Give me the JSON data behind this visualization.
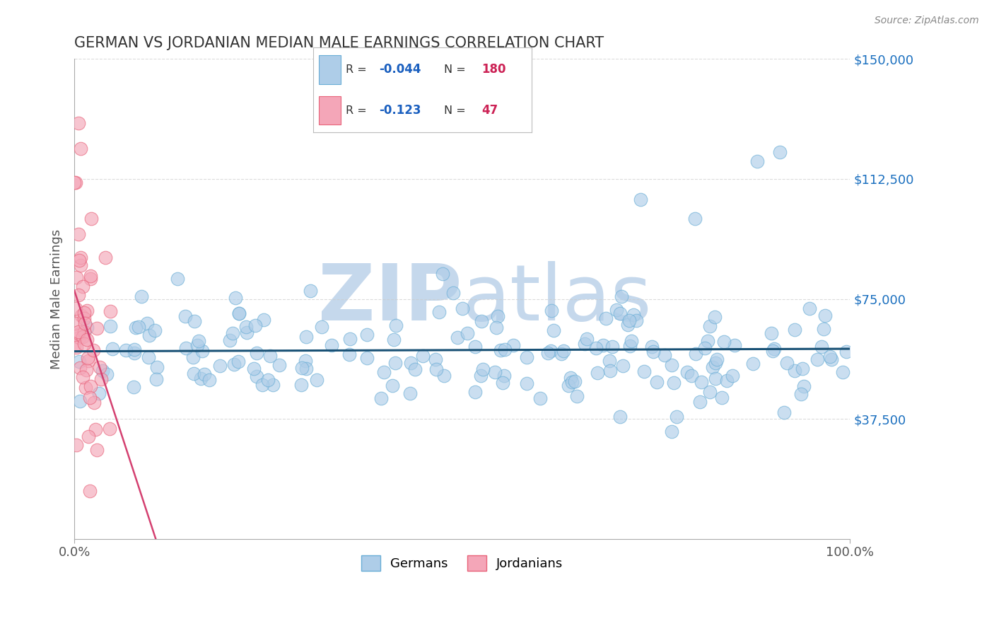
{
  "title": "GERMAN VS JORDANIAN MEDIAN MALE EARNINGS CORRELATION CHART",
  "source_text": "Source: ZipAtlas.com",
  "ylabel": "Median Male Earnings",
  "xlim": [
    0,
    1
  ],
  "ylim": [
    0,
    150000
  ],
  "yticks": [
    0,
    37500,
    75000,
    112500,
    150000
  ],
  "ytick_labels": [
    "",
    "$37,500",
    "$75,000",
    "$112,500",
    "$150,000"
  ],
  "xtick_labels": [
    "0.0%",
    "100.0%"
  ],
  "german_R": -0.044,
  "german_N": 180,
  "jordanian_R": -0.123,
  "jordanian_N": 47,
  "german_color": "#aecde8",
  "german_edge_color": "#6aaed6",
  "jordanian_color": "#f4a6b8",
  "jordanian_edge_color": "#e8637a",
  "german_line_color": "#1a5276",
  "jordanian_line_color": "#d44070",
  "grid_color": "#cccccc",
  "title_color": "#333333",
  "ylabel_color": "#555555",
  "ytick_color": "#1a6fbf",
  "source_color": "#888888",
  "watermark_zip_color": "#c5d8ec",
  "watermark_atlas_color": "#c5d8ec",
  "background_color": "#ffffff",
  "legend_R_color": "#1a5fbf",
  "legend_N_color": "#cc2255",
  "legend_text_color": "#333333"
}
